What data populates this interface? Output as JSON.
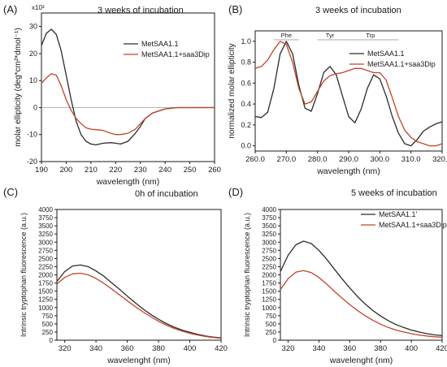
{
  "colors": {
    "black_series": "#2b2b2b",
    "red_series": "#c0442c",
    "axis": "#1a1a1a",
    "region_line": "#aaaaaa"
  },
  "chart_data": [
    {
      "panel": "(A)",
      "type": "line",
      "title": "3 weeks of incubation",
      "xlabel": "wavelength (nm)",
      "ylabel": "molar ellipticity (deg*cm²*dmol⁻¹)",
      "ylabel_multiplier": "x10³",
      "xlim": [
        190,
        260
      ],
      "ylim": [
        -20,
        35
      ],
      "xticks": [
        190,
        200,
        210,
        220,
        230,
        240,
        250,
        260
      ],
      "yticks": [
        -20,
        -10,
        0,
        10,
        20,
        30
      ],
      "legend": "top-right",
      "series": [
        {
          "name": "MetSAA1.1",
          "color": "#2b2b2b",
          "x": [
            190,
            192,
            194,
            196,
            198,
            200,
            202,
            204,
            206,
            208,
            210,
            212,
            215,
            218,
            220,
            222,
            225,
            228,
            230,
            232,
            235,
            240,
            245,
            250,
            255,
            260
          ],
          "y": [
            23,
            27.5,
            29,
            27,
            21,
            12,
            3,
            -5,
            -10,
            -12.5,
            -13.5,
            -13.8,
            -13.2,
            -13,
            -13.2,
            -13.5,
            -12.5,
            -9.5,
            -7,
            -4,
            -2,
            -0.5,
            0,
            0,
            0,
            0
          ]
        },
        {
          "name": "MetSAA1.1+saa3Dip",
          "color": "#c0442c",
          "x": [
            190,
            192,
            194,
            196,
            198,
            200,
            202,
            204,
            206,
            208,
            210,
            212,
            215,
            218,
            220,
            222,
            225,
            228,
            230,
            232,
            235,
            240,
            245,
            250,
            255,
            260
          ],
          "y": [
            9,
            11,
            12.5,
            12,
            8,
            3,
            -1,
            -4,
            -6,
            -7.5,
            -8,
            -8.2,
            -8.5,
            -9.5,
            -10,
            -10,
            -9.5,
            -8,
            -6,
            -4,
            -2,
            -0.5,
            0,
            0,
            0,
            0
          ]
        }
      ]
    },
    {
      "panel": "(B)",
      "type": "line",
      "title": "3 weeks of incubation",
      "xlabel": "wavelength (nm)",
      "ylabel": "normalized molar ellipticity",
      "xlim": [
        260,
        320
      ],
      "ylim": [
        -0.05,
        1.1
      ],
      "xticks": [
        260,
        270,
        280,
        290,
        300,
        310,
        320
      ],
      "yticks": [
        0.0,
        0.2,
        0.4,
        0.6,
        0.8,
        1.0
      ],
      "region_labels": [
        {
          "label": "Phe",
          "x_range": [
            266,
            274
          ]
        },
        {
          "label": "Tyr",
          "x_range": [
            280,
            288
          ]
        },
        {
          "label": "Trp",
          "x_range": [
            288,
            306
          ]
        }
      ],
      "legend": "top-right",
      "series": [
        {
          "name": "MetSAA1.1",
          "color": "#2b2b2b",
          "x": [
            260,
            262,
            264,
            266,
            268,
            270,
            272,
            274,
            276,
            278,
            280,
            282,
            284,
            286,
            288,
            290,
            292,
            294,
            296,
            298,
            300,
            302,
            304,
            306,
            308,
            310,
            312,
            314,
            316,
            318,
            320
          ],
          "y": [
            0.28,
            0.27,
            0.32,
            0.55,
            0.88,
            1.0,
            0.88,
            0.58,
            0.36,
            0.33,
            0.5,
            0.7,
            0.76,
            0.68,
            0.48,
            0.28,
            0.22,
            0.35,
            0.55,
            0.68,
            0.64,
            0.48,
            0.28,
            0.12,
            0.02,
            0.0,
            0.06,
            0.14,
            0.18,
            0.21,
            0.23
          ]
        },
        {
          "name": "MetSAA1.1+saa3Dip",
          "color": "#c0442c",
          "x": [
            260,
            262,
            264,
            266,
            268,
            270,
            272,
            274,
            276,
            278,
            280,
            282,
            284,
            286,
            288,
            290,
            292,
            294,
            296,
            298,
            300,
            302,
            304,
            306,
            308,
            310,
            312,
            314,
            316,
            318,
            320
          ],
          "y": [
            0.74,
            0.76,
            0.82,
            0.92,
            1.0,
            0.97,
            0.8,
            0.55,
            0.4,
            0.42,
            0.52,
            0.62,
            0.67,
            0.69,
            0.7,
            0.72,
            0.74,
            0.74,
            0.72,
            0.7,
            0.7,
            0.63,
            0.46,
            0.28,
            0.15,
            0.08,
            0.04,
            0.02,
            0.0,
            0.0,
            0.02
          ]
        }
      ]
    },
    {
      "panel": "(C)",
      "type": "line",
      "title": "0h of incubation",
      "xlabel": "wavelenght (nm)",
      "ylabel": "Intrinsic tryptophan fluorescence (a.u.)",
      "xlim": [
        315,
        420
      ],
      "ylim": [
        0,
        4000
      ],
      "xticks": [
        320,
        340,
        360,
        380,
        400,
        420
      ],
      "yticks": [
        0,
        250,
        500,
        750,
        1000,
        1250,
        1500,
        1750,
        2000,
        2250,
        2500,
        2750,
        3000,
        3250,
        3500,
        3750,
        4000
      ],
      "series": [
        {
          "color": "#2b2b2b",
          "x": [
            315,
            320,
            325,
            330,
            335,
            340,
            345,
            350,
            355,
            360,
            365,
            370,
            375,
            380,
            385,
            390,
            395,
            400,
            405,
            410,
            415,
            420
          ],
          "y": [
            1800,
            2100,
            2270,
            2300,
            2250,
            2120,
            1960,
            1760,
            1560,
            1350,
            1150,
            960,
            790,
            640,
            510,
            400,
            310,
            240,
            180,
            130,
            95,
            70
          ]
        },
        {
          "color": "#c0442c",
          "x": [
            315,
            320,
            325,
            330,
            335,
            340,
            345,
            350,
            355,
            360,
            365,
            370,
            375,
            380,
            385,
            390,
            395,
            400,
            405,
            410,
            415,
            420
          ],
          "y": [
            1720,
            1920,
            2030,
            2050,
            2000,
            1890,
            1740,
            1570,
            1390,
            1210,
            1030,
            870,
            720,
            580,
            460,
            360,
            280,
            210,
            160,
            115,
            85,
            60
          ]
        }
      ]
    },
    {
      "panel": "(D)",
      "type": "line",
      "title": "5 weeks of incubation",
      "xlabel": "wavelenght (nm)",
      "ylabel": "Intrinsic tryptophan fluorescence (a.u.)",
      "xlim": [
        315,
        420
      ],
      "ylim": [
        0,
        4000
      ],
      "xticks": [
        320,
        340,
        360,
        380,
        400,
        420
      ],
      "yticks": [
        0,
        250,
        500,
        750,
        1000,
        1250,
        1500,
        1750,
        2000,
        2250,
        2500,
        2750,
        3000,
        3250,
        3500,
        3750,
        4000
      ],
      "legend": "top-right",
      "series": [
        {
          "name": "MetSAA1.1'",
          "color": "#2b2b2b",
          "x": [
            315,
            320,
            325,
            330,
            335,
            340,
            345,
            350,
            355,
            360,
            365,
            370,
            375,
            380,
            385,
            390,
            395,
            400,
            405,
            410,
            415,
            420
          ],
          "y": [
            2100,
            2600,
            2920,
            3030,
            2960,
            2750,
            2480,
            2180,
            1880,
            1600,
            1340,
            1110,
            910,
            740,
            600,
            480,
            390,
            310,
            250,
            200,
            165,
            140
          ]
        },
        {
          "name": "MetSAA1.1+saa3Dip'",
          "color": "#c0442c",
          "x": [
            315,
            320,
            325,
            330,
            335,
            340,
            345,
            350,
            355,
            360,
            365,
            370,
            375,
            380,
            385,
            390,
            395,
            400,
            405,
            410,
            415,
            420
          ],
          "y": [
            1550,
            1880,
            2080,
            2130,
            2070,
            1920,
            1720,
            1500,
            1290,
            1090,
            910,
            750,
            610,
            490,
            390,
            310,
            250,
            200,
            160,
            130,
            105,
            90
          ]
        }
      ]
    }
  ]
}
